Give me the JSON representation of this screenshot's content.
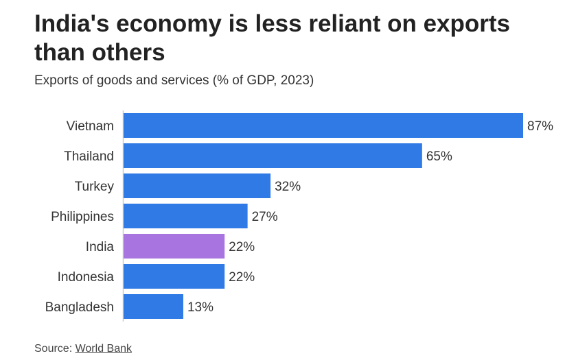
{
  "chart_data": {
    "type": "bar",
    "orientation": "horizontal",
    "title": "India's economy is less reliant on exports than others",
    "subtitle": "Exports of goods and services (% of GDP, 2023)",
    "categories": [
      "Vietnam",
      "Thailand",
      "Turkey",
      "Philippines",
      "India",
      "Indonesia",
      "Bangladesh"
    ],
    "values": [
      87,
      65,
      32,
      27,
      22,
      22,
      13
    ],
    "value_labels": [
      "87%",
      "65%",
      "32%",
      "27%",
      "22%",
      "22%",
      "13%"
    ],
    "xlim": [
      0,
      87
    ],
    "colors": {
      "default": "#2f7ae5",
      "highlight": "#a875e0",
      "axis": "#cccccc"
    },
    "highlight": "India",
    "grid": false
  },
  "source": {
    "prefix": "Source: ",
    "link_text": "World Bank"
  }
}
